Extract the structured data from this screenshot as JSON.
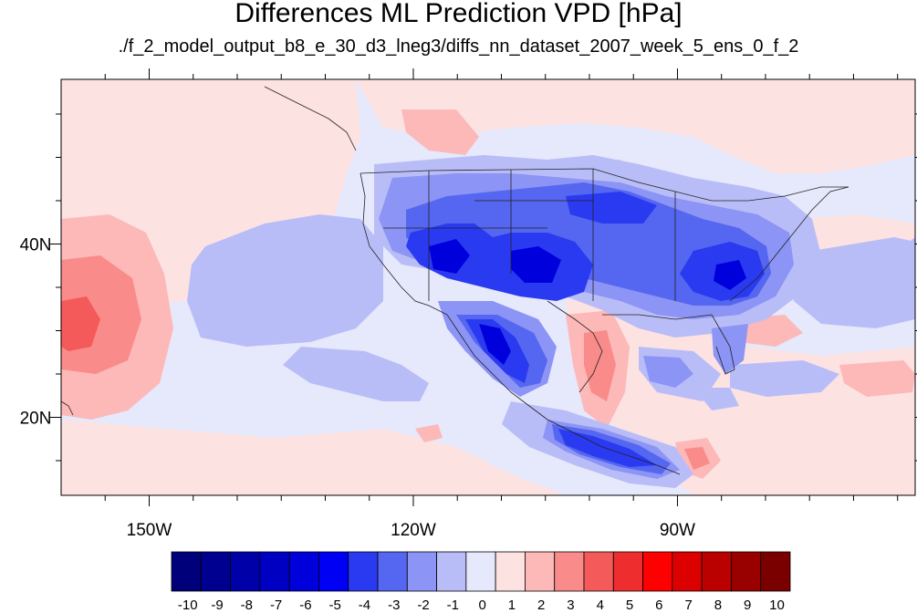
{
  "title": "Differences ML Prediction VPD [hPa]",
  "subtitle": "./f_2_model_output_b8_e_30_d3_lneg3/diffs_nn_dataset_2007_week_5_ens_0_f_2",
  "map": {
    "lon_range": [
      -160,
      -63
    ],
    "lat_range": [
      11,
      59
    ],
    "lon_labels": [
      {
        "lon": -150,
        "text": "150W"
      },
      {
        "lon": -120,
        "text": "120W"
      },
      {
        "lon": -90,
        "text": "90W"
      }
    ],
    "lat_labels": [
      {
        "lat": 40,
        "text": "40N"
      },
      {
        "lat": 20,
        "text": "20N"
      }
    ],
    "minor_lon_ticks": [
      -155,
      -145,
      -140,
      -135,
      -130,
      -125,
      -115,
      -110,
      -105,
      -100,
      -95,
      -85,
      -80,
      -75,
      -70,
      -65
    ],
    "minor_lat_ticks": [
      15,
      25,
      30,
      35,
      45,
      50,
      55
    ]
  },
  "colorbar": {
    "levels": [
      "-10",
      "-9",
      "-8",
      "-7",
      "-6",
      "-5",
      "-4",
      "-3",
      "-2",
      "-1",
      "0",
      "1",
      "2",
      "3",
      "4",
      "5",
      "6",
      "7",
      "8",
      "9",
      "10"
    ],
    "colors": [
      "#00007a",
      "#000090",
      "#0000a8",
      "#0000c2",
      "#0000dc",
      "#0000f5",
      "#2a3af0",
      "#5566f0",
      "#8c94f5",
      "#b9bdf7",
      "#e6e8fb",
      "#fde2e2",
      "#fdb8b8",
      "#f98b8b",
      "#f45a5a",
      "#ee2e2e",
      "#ff0000",
      "#dd0000",
      "#bb0000",
      "#990000",
      "#7a0000"
    ]
  }
}
